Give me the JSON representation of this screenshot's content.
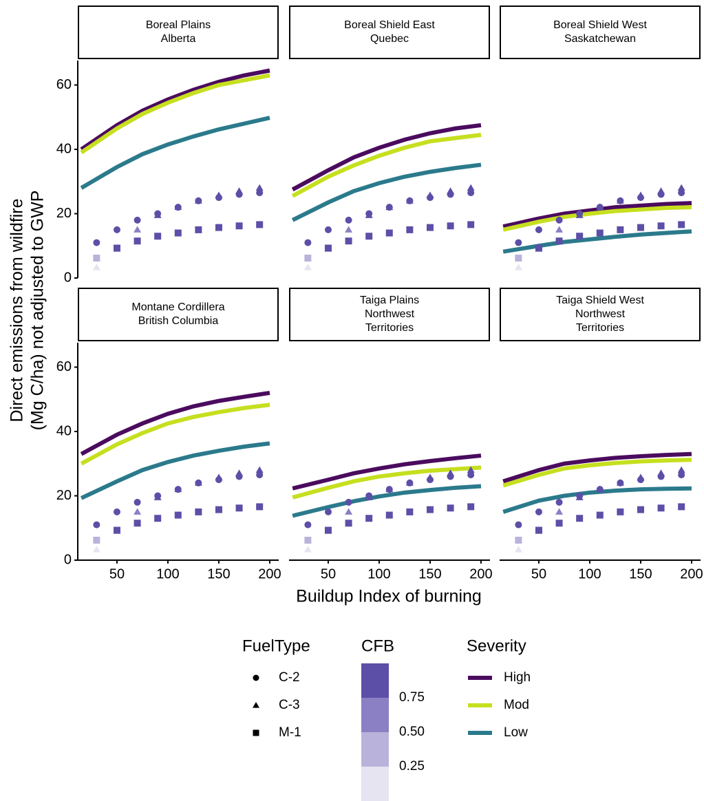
{
  "chart_data": {
    "type": "line",
    "x_label": "Buildup Index of burning",
    "y_label": [
      "Direct emissions from wildfire",
      "(Mg C/ha) not adjusted to GWP"
    ],
    "xlim": [
      11.5,
      208.8
    ],
    "xticks": [
      50,
      100,
      150,
      200
    ],
    "ylim": [
      0,
      67.6
    ],
    "yticks": [
      0,
      20,
      40,
      60
    ],
    "x": [
      15,
      50,
      75,
      100,
      125,
      150,
      175,
      200
    ],
    "severity_title": "Severity",
    "severity": [
      {
        "name": "High",
        "color": "#4b0b5e"
      },
      {
        "name": "Mod",
        "color": "#c6df1f"
      },
      {
        "name": "Low",
        "color": "#2b7a8c"
      }
    ],
    "facets": [
      {
        "strip": [
          "Boreal Plains",
          "Alberta"
        ],
        "series": [
          [
            40,
            47.5,
            52,
            55.5,
            58.5,
            61,
            63,
            64.5
          ],
          [
            39,
            46.5,
            51,
            54.5,
            57.5,
            60,
            61.5,
            63
          ],
          [
            28,
            34.5,
            38.5,
            41.5,
            44,
            46.2,
            48,
            49.8
          ]
        ]
      },
      {
        "strip": [
          "Boreal Shield East",
          "Quebec"
        ],
        "series": [
          [
            27.5,
            33.5,
            37.5,
            40.5,
            43,
            45,
            46.5,
            47.5
          ],
          [
            25.5,
            31.5,
            35,
            38,
            40.5,
            42.5,
            43.5,
            44.5
          ],
          [
            18,
            23.5,
            27,
            29.5,
            31.5,
            33,
            34.2,
            35.2
          ]
        ]
      },
      {
        "strip": [
          "Boreal Shield West",
          "Saskatchewan"
        ],
        "series": [
          [
            16,
            18.5,
            20,
            21,
            22,
            22.5,
            23,
            23.3
          ],
          [
            15,
            17.5,
            19,
            20,
            20.8,
            21.3,
            21.8,
            22
          ],
          [
            8.2,
            10,
            11.2,
            12,
            12.8,
            13.5,
            14,
            14.5
          ]
        ]
      },
      {
        "strip": [
          "Montane Cordillera",
          "British Columbia"
        ],
        "series": [
          [
            33,
            39,
            42.5,
            45.5,
            47.8,
            49.5,
            50.8,
            52
          ],
          [
            30,
            36,
            39.5,
            42.5,
            44.5,
            46,
            47.3,
            48.3
          ],
          [
            19.3,
            24.5,
            28,
            30.5,
            32.5,
            34,
            35.3,
            36.3
          ]
        ]
      },
      {
        "strip": [
          "Taiga Plains",
          "Northwest",
          "Territories"
        ],
        "series": [
          [
            22.3,
            25,
            27,
            28.5,
            29.8,
            30.8,
            31.7,
            32.5
          ],
          [
            19.5,
            22.5,
            24.5,
            26,
            27,
            27.8,
            28.3,
            28.8
          ],
          [
            13.8,
            16.5,
            18.3,
            19.8,
            21,
            21.8,
            22.5,
            23
          ]
        ]
      },
      {
        "strip": [
          "Taiga Shield West",
          "Northwest",
          "Territories"
        ],
        "series": [
          [
            24.5,
            28,
            30,
            31,
            31.8,
            32.3,
            32.7,
            33
          ],
          [
            23.2,
            26.5,
            28.5,
            29.5,
            30.2,
            30.7,
            31,
            31.2
          ],
          [
            15,
            18.5,
            20,
            21,
            21.6,
            22,
            22.2,
            22.3
          ]
        ]
      }
    ],
    "fuel_title": "FuelType",
    "points_x": [
      30,
      50,
      70,
      90,
      110,
      130,
      150,
      170,
      190
    ],
    "fuel": [
      {
        "name": "C-2",
        "shape": "circle",
        "values": [
          11,
          15,
          18,
          20,
          22,
          24,
          25,
          26,
          26.5
        ],
        "cfb": [
          0.8,
          1,
          1,
          1,
          1,
          1,
          1,
          1,
          1
        ]
      },
      {
        "name": "C-3",
        "shape": "triangle",
        "values": [
          3.3,
          9,
          15,
          19.5,
          22,
          24,
          25.7,
          27,
          28
        ],
        "cfb": [
          0.1,
          0.4,
          0.6,
          0.9,
          1,
          1,
          1,
          1,
          1
        ]
      },
      {
        "name": "M-1",
        "shape": "square",
        "values": [
          6.2,
          9.3,
          11.5,
          13,
          14,
          15,
          15.7,
          16.2,
          16.6
        ],
        "cfb": [
          0.3,
          0.95,
          1,
          1,
          1,
          1,
          1,
          1,
          1
        ]
      }
    ],
    "cfb_title": "CFB",
    "cfb_lim": [
      0,
      1
    ],
    "cfb_ticks": [
      {
        "value": 0.25,
        "label": "0.25"
      },
      {
        "value": 0.5,
        "label": "0.50"
      },
      {
        "value": 0.75,
        "label": "0.75"
      }
    ],
    "cfb_colors": [
      "#e6e4f1",
      "#b9b2da",
      "#8b80c4",
      "#5c4fa7"
    ]
  }
}
